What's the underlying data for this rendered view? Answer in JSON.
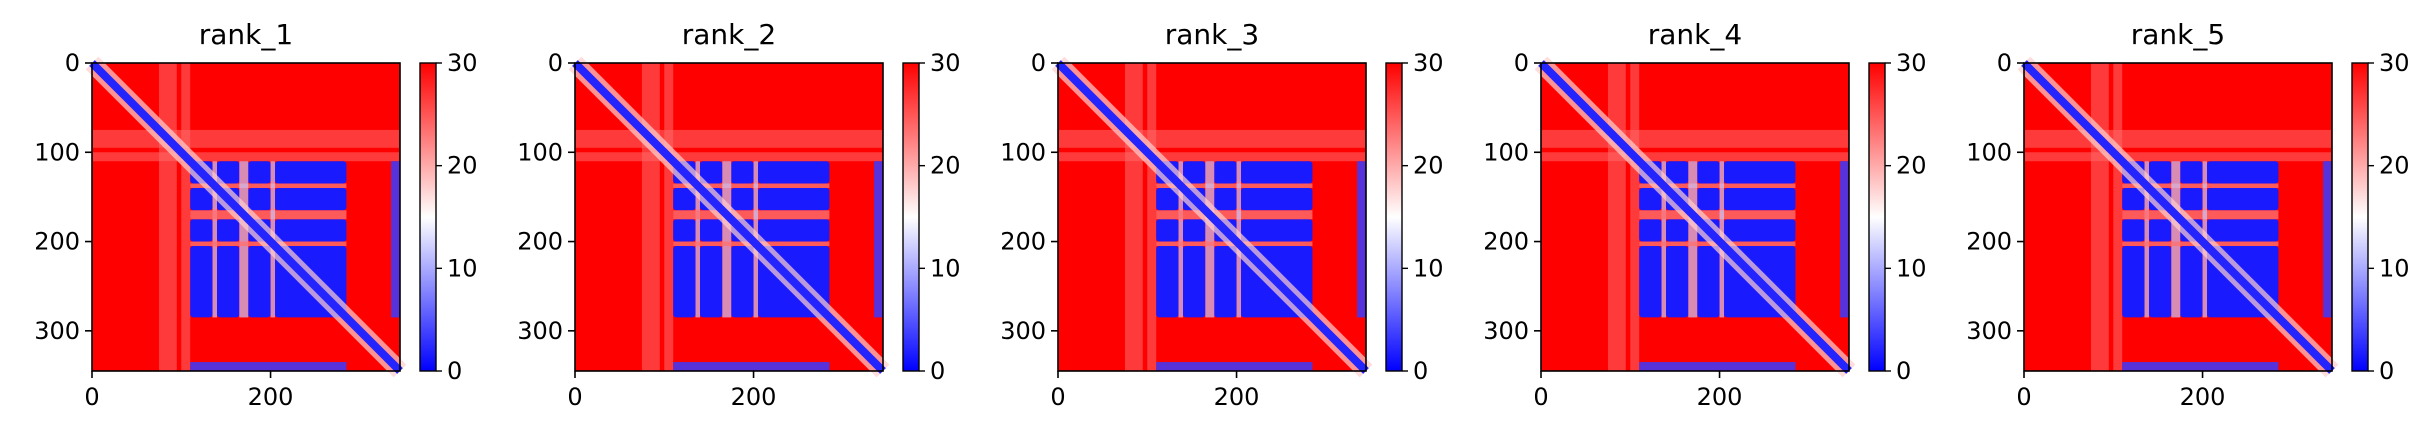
{
  "chart_data": [
    {
      "type": "heatmap",
      "title": "rank_1",
      "x_ticks": [
        0,
        200
      ],
      "y_ticks": [
        0,
        100,
        200,
        300
      ],
      "xlim": [
        0,
        345
      ],
      "ylim": [
        345,
        0
      ],
      "colorbar": {
        "ticks": [
          0,
          10,
          20,
          30
        ],
        "range": [
          0,
          30
        ],
        "cmap": "bwr",
        "low_color": "#0000ff",
        "mid_color": "#ffffff",
        "high_color": "#ff0000"
      }
    },
    {
      "type": "heatmap",
      "title": "rank_2",
      "x_ticks": [
        0,
        200
      ],
      "y_ticks": [
        0,
        100,
        200,
        300
      ],
      "xlim": [
        0,
        345
      ],
      "ylim": [
        345,
        0
      ],
      "colorbar": {
        "ticks": [
          0,
          10,
          20,
          30
        ],
        "range": [
          0,
          30
        ],
        "cmap": "bwr",
        "low_color": "#0000ff",
        "mid_color": "#ffffff",
        "high_color": "#ff0000"
      }
    },
    {
      "type": "heatmap",
      "title": "rank_3",
      "x_ticks": [
        0,
        200
      ],
      "y_ticks": [
        0,
        100,
        200,
        300
      ],
      "xlim": [
        0,
        345
      ],
      "ylim": [
        345,
        0
      ],
      "colorbar": {
        "ticks": [
          0,
          10,
          20,
          30
        ],
        "range": [
          0,
          30
        ],
        "cmap": "bwr",
        "low_color": "#0000ff",
        "mid_color": "#ffffff",
        "high_color": "#ff0000"
      }
    },
    {
      "type": "heatmap",
      "title": "rank_4",
      "x_ticks": [
        0,
        200
      ],
      "y_ticks": [
        0,
        100,
        200,
        300
      ],
      "xlim": [
        0,
        345
      ],
      "ylim": [
        345,
        0
      ],
      "colorbar": {
        "ticks": [
          0,
          10,
          20,
          30
        ],
        "range": [
          0,
          30
        ],
        "cmap": "bwr",
        "low_color": "#0000ff",
        "mid_color": "#ffffff",
        "high_color": "#ff0000"
      }
    },
    {
      "type": "heatmap",
      "title": "rank_5",
      "x_ticks": [
        0,
        200
      ],
      "y_ticks": [
        0,
        100,
        200,
        300
      ],
      "xlim": [
        0,
        345
      ],
      "ylim": [
        345,
        0
      ],
      "colorbar": {
        "ticks": [
          0,
          10,
          20,
          30
        ],
        "range": [
          0,
          30
        ],
        "cmap": "bwr",
        "low_color": "#0000ff",
        "mid_color": "#ffffff",
        "high_color": "#ff0000"
      }
    }
  ]
}
